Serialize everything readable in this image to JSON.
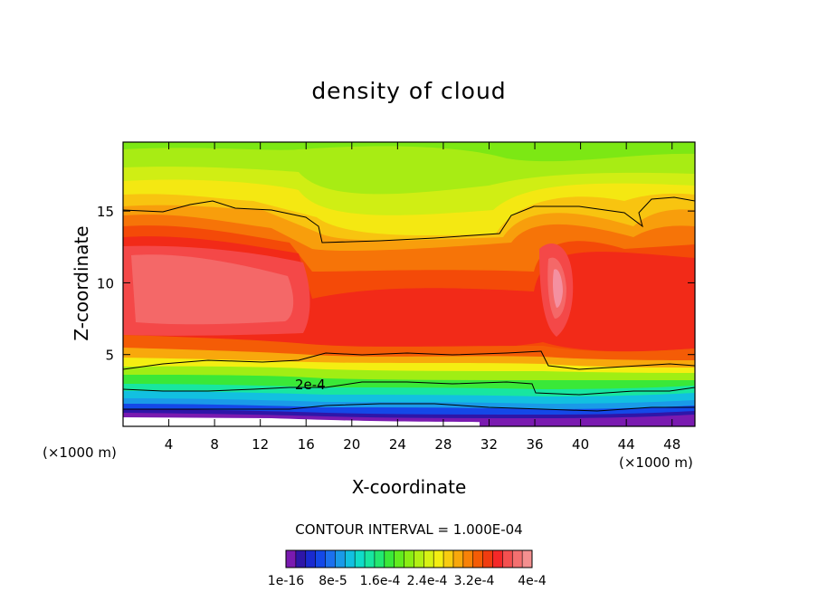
{
  "chart_data": {
    "type": "heatmap",
    "title": "density of cloud",
    "xlabel": "X-coordinate",
    "ylabel": "Z-coordinate",
    "x_unit_label": "(×1000 m)",
    "x_unit_label_right": "(×1000 m)",
    "xlim": [
      0,
      50
    ],
    "ylim": [
      0,
      19.8
    ],
    "x_ticks": [
      4,
      8,
      12,
      16,
      20,
      24,
      28,
      32,
      36,
      40,
      44,
      48
    ],
    "y_ticks": [
      5,
      10,
      15
    ],
    "contour_interval_text": "CONTOUR INTERVAL = 1.000E-04",
    "contour_annotation": "2e-4",
    "colorbar": {
      "range": [
        1e-16,
        0.0004
      ],
      "labels": [
        "1e-16",
        "8e-5",
        "1.6e-4",
        "2.4e-4",
        "3.2e-4",
        "4e-4"
      ],
      "colors": [
        "#7a1ab0",
        "#2e16a8",
        "#1a2ad0",
        "#1448e8",
        "#1c70ee",
        "#1a9ae8",
        "#12c0e0",
        "#10dcc8",
        "#18e6a0",
        "#22e870",
        "#3ae838",
        "#62ec1e",
        "#8aee14",
        "#b2f014",
        "#d8f214",
        "#f4ee12",
        "#f8cc10",
        "#f8a80c",
        "#f88208",
        "#f45c06",
        "#f03c10",
        "#f42828",
        "#f45050",
        "#f47070",
        "#f49090"
      ]
    }
  }
}
